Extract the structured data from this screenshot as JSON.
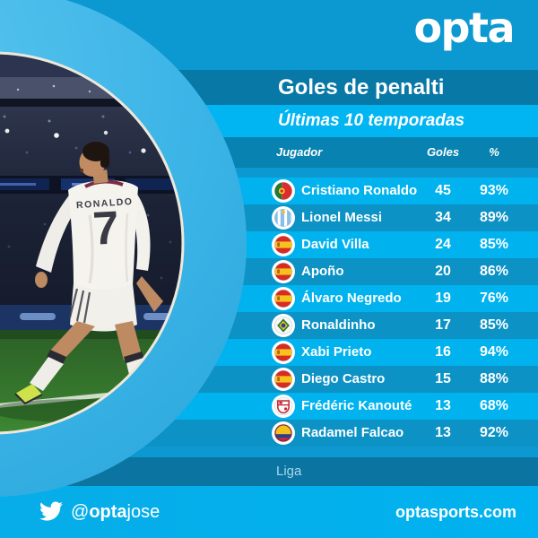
{
  "brand": {
    "logo_text": "opta"
  },
  "header": {
    "title": "Goles de penalti",
    "subtitle": "Últimas 10 temporadas"
  },
  "table": {
    "headers": {
      "player": "Jugador",
      "goals": "Goles",
      "pct": "%"
    },
    "rows": [
      {
        "flag": "portugal",
        "player": "Cristiano Ronaldo",
        "goals": "45",
        "pct": "93%"
      },
      {
        "flag": "argentina",
        "player": "Lionel Messi",
        "goals": "34",
        "pct": "89%"
      },
      {
        "flag": "spain",
        "player": "David Villa",
        "goals": "24",
        "pct": "85%"
      },
      {
        "flag": "spain",
        "player": "Apoño",
        "goals": "20",
        "pct": "86%"
      },
      {
        "flag": "spain",
        "player": "Álvaro Negredo",
        "goals": "19",
        "pct": "76%"
      },
      {
        "flag": "brazil",
        "player": "Ronaldinho",
        "goals": "17",
        "pct": "85%"
      },
      {
        "flag": "spain",
        "player": "Xabi Prieto",
        "goals": "16",
        "pct": "94%"
      },
      {
        "flag": "spain",
        "player": "Diego Castro",
        "goals": "15",
        "pct": "88%"
      },
      {
        "flag": "sevilla",
        "player": "Frédéric Kanouté",
        "goals": "13",
        "pct": "68%"
      },
      {
        "flag": "colombia",
        "player": "Radamel Falcao",
        "goals": "13",
        "pct": "92%"
      }
    ],
    "footnote": "Liga"
  },
  "photo": {
    "jersey_name": "RONALDO",
    "jersey_number": "7"
  },
  "footer": {
    "twitter_at": "@",
    "twitter_bold": "opta",
    "twitter_rest": "jose",
    "website": "optasports.com"
  },
  "colors": {
    "base": "#0c98d0",
    "bright_row": "#00b2ee",
    "dark_row": "#0c92c5",
    "title_band": "#0878a6",
    "ring": "#3cb6e8"
  },
  "chart_data": {
    "type": "table",
    "title": "Goles de penalti",
    "subtitle": "Últimas 10 temporadas",
    "columns": [
      "Jugador",
      "Goles",
      "%"
    ],
    "rows": [
      [
        "Cristiano Ronaldo",
        45,
        "93%"
      ],
      [
        "Lionel Messi",
        34,
        "89%"
      ],
      [
        "David Villa",
        24,
        "85%"
      ],
      [
        "Apoño",
        20,
        "86%"
      ],
      [
        "Álvaro Negredo",
        19,
        "76%"
      ],
      [
        "Ronaldinho",
        17,
        "85%"
      ],
      [
        "Xabi Prieto",
        16,
        "94%"
      ],
      [
        "Diego Castro",
        15,
        "88%"
      ],
      [
        "Frédéric Kanouté",
        13,
        "68%"
      ],
      [
        "Radamel Falcao",
        13,
        "92%"
      ]
    ],
    "competition": "Liga",
    "legend_position": "none",
    "grid": false
  }
}
